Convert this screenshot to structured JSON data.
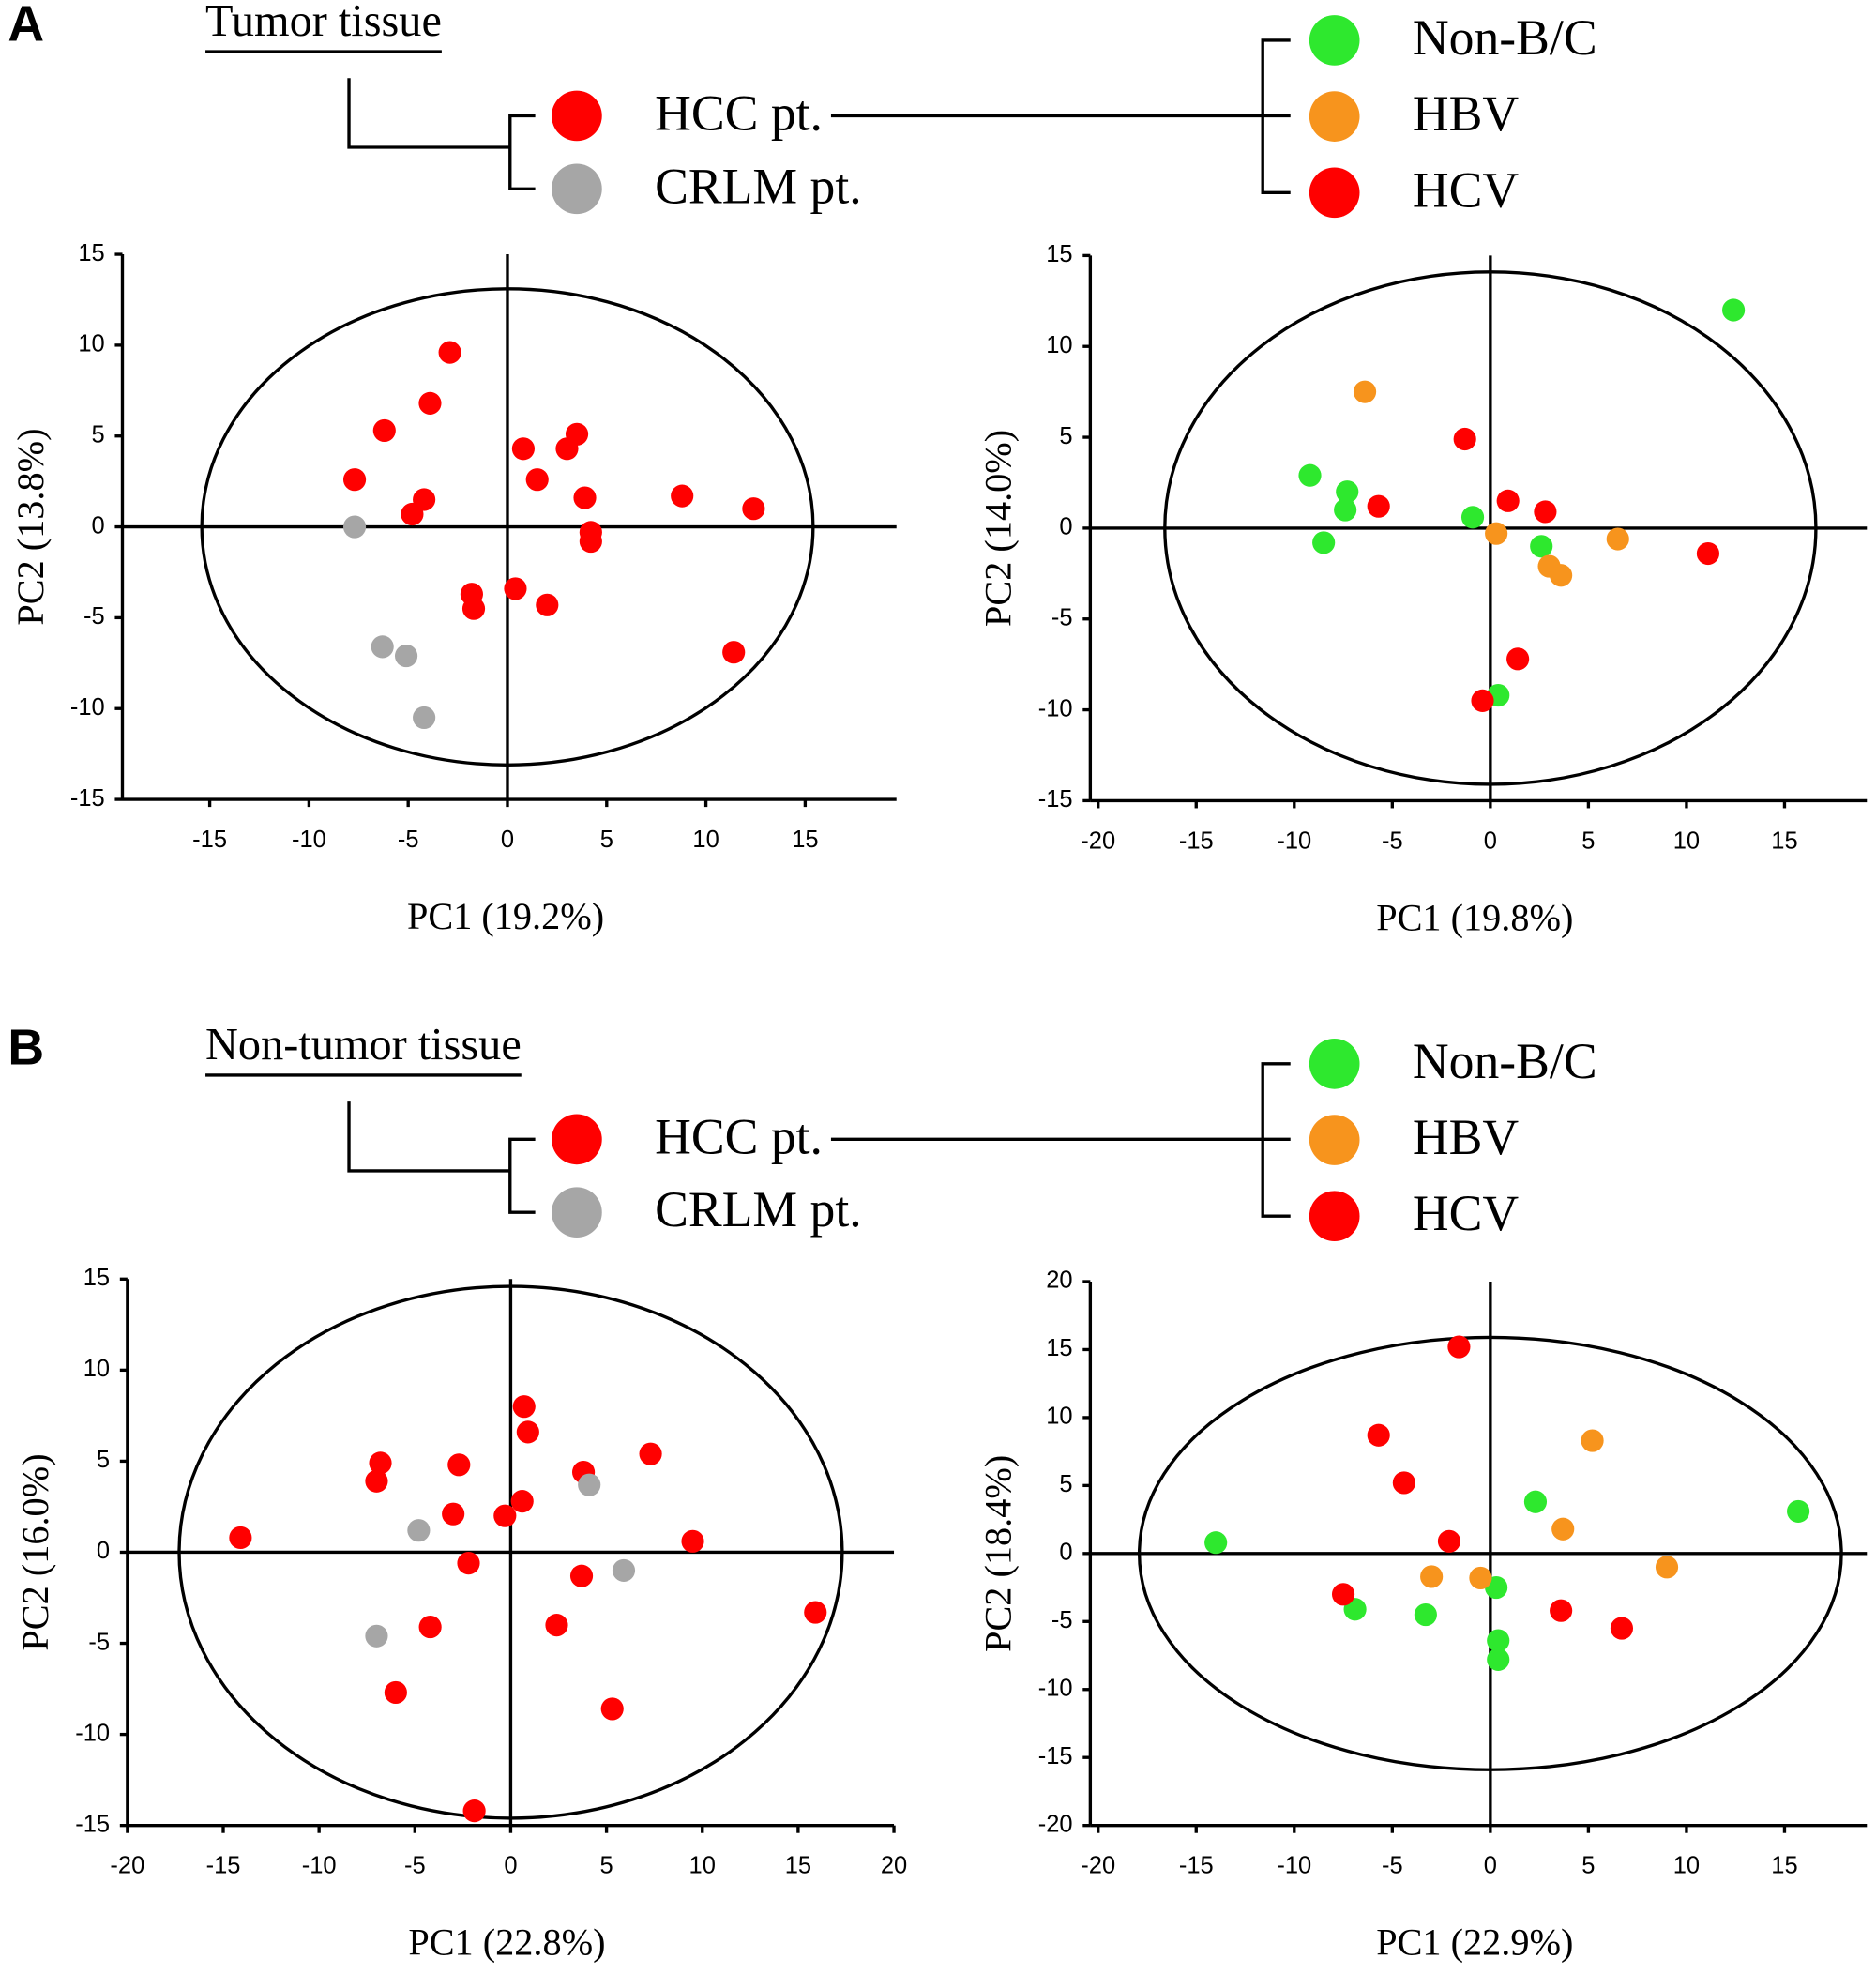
{
  "panels": [
    {
      "label": "A",
      "title": "Tumor tissue"
    },
    {
      "label": "B",
      "title": "Non-tumor tissue"
    }
  ],
  "chart_data": [
    {
      "type": "scatter",
      "xlabel": "PC1 (19.2%)",
      "ylabel": "PC2 (13.8%)",
      "xlim": [
        -19.4,
        19.6
      ],
      "ylim": [
        -15,
        15
      ],
      "xticks": [
        -15,
        -10,
        -5,
        0,
        5,
        10,
        15
      ],
      "yticks": [
        -15,
        -10,
        -5,
        0,
        5,
        10,
        15
      ],
      "ellipse": [
        15.4,
        13.1
      ],
      "series": [
        {
          "name": "HCC pt.",
          "color": "#ff0000",
          "x": [
            -2.9,
            -3.9,
            -6.2,
            -7.7,
            -4.2,
            -4.8,
            0.8,
            3.0,
            3.5,
            1.5,
            3.9,
            4.2,
            4.2,
            8.8,
            12.4,
            -1.8,
            -1.7,
            0.4,
            2.0,
            11.4
          ],
          "values": [
            9.6,
            6.8,
            5.3,
            2.6,
            1.5,
            0.7,
            4.3,
            4.3,
            5.1,
            2.6,
            1.6,
            -0.3,
            -0.8,
            1.7,
            1.0,
            -3.7,
            -4.5,
            -3.4,
            -4.3,
            -6.9
          ]
        },
        {
          "name": "CRLM pt.",
          "color": "#a6a6a6",
          "x": [
            -7.7,
            -6.3,
            -5.1,
            -4.2
          ],
          "values": [
            0,
            -6.6,
            -7.1,
            -10.5
          ]
        }
      ]
    },
    {
      "type": "scatter",
      "xlabel": "PC1 (19.8%)",
      "ylabel": "PC2 (14.0%)",
      "xlim": [
        -20.4,
        19.2
      ],
      "ylim": [
        -15,
        15
      ],
      "xticks": [
        -20,
        -15,
        -10,
        -5,
        0,
        5,
        10,
        15
      ],
      "yticks": [
        -15,
        -10,
        -5,
        0,
        5,
        10,
        15
      ],
      "ellipse": [
        16.6,
        14.1
      ],
      "series": [
        {
          "name": "Non-B/C",
          "color": "#2ee82e",
          "x": [
            12.4,
            -9.2,
            -7.3,
            -7.4,
            -8.5,
            -0.9,
            2.6,
            0.4
          ],
          "values": [
            12.0,
            2.9,
            2.0,
            1.0,
            -0.8,
            0.6,
            -1.0,
            -9.2
          ]
        },
        {
          "name": "HBV",
          "color": "#f7941d",
          "x": [
            -6.4,
            0.3,
            6.5,
            3.0,
            3.6
          ],
          "values": [
            7.5,
            -0.3,
            -0.6,
            -2.1,
            -2.6
          ]
        },
        {
          "name": "HCV",
          "color": "#ff0000",
          "x": [
            -1.3,
            -5.7,
            0.9,
            2.8,
            11.1,
            1.4,
            -0.4
          ],
          "values": [
            4.9,
            1.2,
            1.5,
            0.9,
            -1.4,
            -7.2,
            -9.5
          ]
        }
      ]
    },
    {
      "type": "scatter",
      "xlabel": "PC1 (22.8%)",
      "ylabel": "PC2 (16.0%)",
      "xlim": [
        -20,
        20
      ],
      "ylim": [
        -15,
        15
      ],
      "xticks": [
        -20,
        -15,
        -10,
        -5,
        0,
        5,
        10,
        15,
        20
      ],
      "yticks": [
        -15,
        -10,
        -5,
        0,
        5,
        10,
        15
      ],
      "ellipse": [
        17.3,
        14.6
      ],
      "series": [
        {
          "name": "HCC pt.",
          "color": "#ff0000",
          "x": [
            -14.1,
            -6.8,
            -7.0,
            -2.7,
            -3.0,
            -2.2,
            -4.2,
            -6.0,
            -1.9,
            -0.3,
            0.6,
            0.7,
            0.9,
            3.8,
            7.3,
            9.5,
            15.9,
            3.7,
            2.4,
            5.3
          ],
          "values": [
            0.8,
            4.9,
            3.9,
            4.8,
            2.1,
            -0.6,
            -4.1,
            -7.7,
            -14.2,
            2.0,
            2.8,
            8.0,
            6.6,
            4.4,
            5.4,
            0.6,
            -3.3,
            -1.3,
            -4.0,
            -8.6
          ]
        },
        {
          "name": "CRLM pt.",
          "color": "#a6a6a6",
          "x": [
            -4.8,
            4.1,
            5.9,
            -7.0
          ],
          "values": [
            1.2,
            3.7,
            -1.0,
            -4.6
          ]
        }
      ]
    },
    {
      "type": "scatter",
      "xlabel": "PC1 (22.9%)",
      "ylabel": "PC2 (18.4%)",
      "xlim": [
        -20.4,
        19.2
      ],
      "ylim": [
        -20,
        20
      ],
      "xticks": [
        -20,
        -15,
        -10,
        -5,
        0,
        5,
        10,
        15
      ],
      "yticks": [
        -20,
        -15,
        -10,
        -5,
        0,
        5,
        10,
        15,
        20
      ],
      "ellipse": [
        17.9,
        15.9
      ],
      "series": [
        {
          "name": "Non-B/C",
          "color": "#2ee82e",
          "x": [
            -14.0,
            -6.9,
            -3.3,
            2.3,
            15.7,
            0.3,
            0.4,
            0.4
          ],
          "values": [
            0.8,
            -4.1,
            -4.5,
            3.8,
            3.1,
            -2.5,
            -6.4,
            -7.8
          ]
        },
        {
          "name": "HBV",
          "color": "#f7941d",
          "x": [
            5.2,
            3.7,
            -3.0,
            -0.5,
            9.0
          ],
          "values": [
            8.3,
            1.8,
            -1.7,
            -1.8,
            -1.0
          ]
        },
        {
          "name": "HCV",
          "color": "#ff0000",
          "x": [
            -1.6,
            -5.7,
            -4.4,
            -2.1,
            -7.5,
            3.6,
            6.7
          ],
          "values": [
            15.2,
            8.7,
            5.2,
            0.9,
            -3.0,
            -4.2,
            -5.5
          ]
        }
      ]
    }
  ]
}
